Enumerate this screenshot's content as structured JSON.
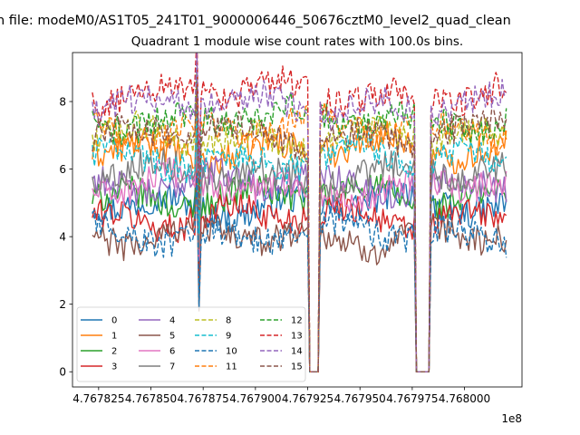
{
  "chart_data": {
    "type": "line",
    "suptitle": "n file: modeM0/AS1T05_241T01_9000006446_50676cztM0_level2_quad_clean",
    "title": "Quadrant 1 module wise count rates with 100.0s bins.",
    "xlabel": "",
    "ylabel": "",
    "x_offset_label": "1e8",
    "x_tick_values": [
      476782500,
      476785000,
      476787500,
      476790000,
      476792500,
      476795000,
      476797500,
      476800000
    ],
    "x_tick_labels": [
      "4.767825",
      "4.767850",
      "4.767875",
      "4.767900",
      "4.767925",
      "4.767950",
      "4.767975",
      "4.768000"
    ],
    "y_tick_values": [
      0,
      2,
      4,
      6,
      8
    ],
    "y_tick_labels": [
      "0",
      "2",
      "4",
      "6",
      "8"
    ],
    "xlim": [
      476781250,
      476802750
    ],
    "ylim": [
      -0.45,
      9.45
    ],
    "x_start": 476782200,
    "x_end": 476802000,
    "bin_seconds": 100,
    "gaps": [
      {
        "start": 476792550,
        "end": 476793050
      },
      {
        "start": 476797650,
        "end": 476798350
      }
    ],
    "spike_time": 476787200,
    "legend_position": "lower left",
    "legend_columns": 4,
    "series": [
      {
        "name": "0",
        "color": "#1f77b4",
        "style": "solid",
        "mean": 4.95
      },
      {
        "name": "1",
        "color": "#ff7f0e",
        "style": "solid",
        "mean": 6.6
      },
      {
        "name": "2",
        "color": "#2ca02c",
        "style": "solid",
        "mean": 5.2
      },
      {
        "name": "3",
        "color": "#d62728",
        "style": "solid",
        "mean": 4.6
      },
      {
        "name": "4",
        "color": "#9467bd",
        "style": "solid",
        "mean": 5.6
      },
      {
        "name": "5",
        "color": "#8c564b",
        "style": "solid",
        "mean": 4.0
      },
      {
        "name": "6",
        "color": "#e377c2",
        "style": "solid",
        "mean": 5.5
      },
      {
        "name": "7",
        "color": "#7f7f7f",
        "style": "solid",
        "mean": 5.85
      },
      {
        "name": "8",
        "color": "#bcbd22",
        "style": "dashed",
        "mean": 6.9
      },
      {
        "name": "9",
        "color": "#17becf",
        "style": "dashed",
        "mean": 6.3
      },
      {
        "name": "10",
        "color": "#1f77b4",
        "style": "dashed",
        "mean": 4.1
      },
      {
        "name": "11",
        "color": "#ff7f0e",
        "style": "dashed",
        "mean": 7.2
      },
      {
        "name": "12",
        "color": "#2ca02c",
        "style": "dashed",
        "mean": 7.5
      },
      {
        "name": "13",
        "color": "#d62728",
        "style": "dashed",
        "mean": 8.25
      },
      {
        "name": "14",
        "color": "#9467bd",
        "style": "dashed",
        "mean": 7.9
      },
      {
        "name": "15",
        "color": "#8c564b",
        "style": "dashed",
        "mean": 7.0
      }
    ]
  }
}
